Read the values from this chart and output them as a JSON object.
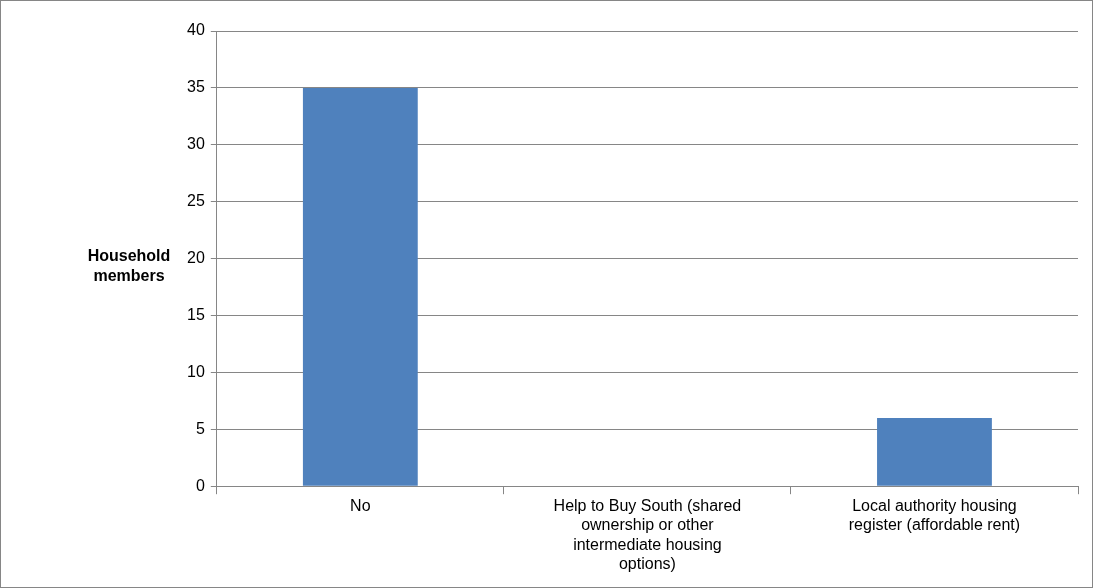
{
  "chart_data": {
    "type": "bar",
    "ylabel": "Household members",
    "categories": [
      "No",
      "Help to Buy South (shared ownership or other intermediate housing options)",
      "Local authority housing register (affordable rent)"
    ],
    "values": [
      35,
      0,
      6
    ],
    "color": "#4f81bd",
    "ylim": [
      0,
      40
    ],
    "yticks": [
      0,
      5,
      10,
      15,
      20,
      25,
      30,
      35,
      40
    ],
    "grid": "y"
  }
}
